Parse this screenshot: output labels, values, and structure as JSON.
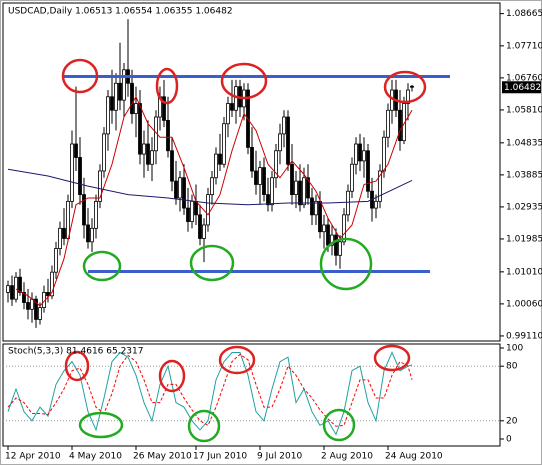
{
  "chart_data": [
    {
      "type": "candlestick",
      "title": "USDCAD,Daily  1.06513 1.06554 1.06355 1.06482",
      "categories": [
        "12 Apr 2010",
        null,
        null,
        null,
        null,
        null,
        null,
        null,
        null,
        null,
        null,
        null,
        null,
        null,
        null,
        null,
        "4 May 2010",
        null,
        null,
        null,
        null,
        null,
        null,
        null,
        null,
        null,
        null,
        null,
        null,
        null,
        null,
        null,
        "26 May 2010",
        null,
        null,
        null,
        null,
        null,
        null,
        null,
        null,
        null,
        null,
        null,
        null,
        null,
        null,
        "17 Jun 2010",
        null,
        null,
        null,
        null,
        null,
        null,
        null,
        null,
        null,
        null,
        null,
        null,
        null,
        null,
        null,
        "9 Jul 2010",
        null,
        null,
        null,
        null,
        null,
        null,
        null,
        null,
        null,
        null,
        null,
        null,
        null,
        null,
        null,
        "2 Aug 2010",
        null,
        null,
        null,
        null,
        null,
        null,
        null,
        null,
        null,
        null,
        null,
        null,
        null,
        null,
        null,
        "24 Aug 2010",
        null,
        null,
        null,
        null,
        null,
        null
      ],
      "candles": [
        [
          1.004,
          1.0075,
          1.001,
          1.006
        ],
        [
          1.006,
          1.009,
          1.0,
          1.002
        ],
        [
          1.002,
          1.01,
          1.001,
          1.0085
        ],
        [
          1.0085,
          1.011,
          1.003,
          1.004
        ],
        [
          1.004,
          1.007,
          0.999,
          1.001
        ],
        [
          1.001,
          1.005,
          0.996,
          0.999
        ],
        [
          0.999,
          1.004,
          0.995,
          1.002
        ],
        [
          1.002,
          1.003,
          0.9935,
          0.996
        ],
        [
          0.996,
          1.001,
          0.9945,
          0.9995
        ],
        [
          0.9995,
          1.006,
          0.998,
          1.004
        ],
        [
          1.004,
          1.008,
          1.001,
          1.003
        ],
        [
          1.003,
          1.012,
          1.002,
          1.01
        ],
        [
          1.01,
          1.019,
          1.008,
          1.017
        ],
        [
          1.017,
          1.025,
          1.015,
          1.023
        ],
        [
          1.023,
          1.029,
          1.018,
          1.02
        ],
        [
          1.02,
          1.033,
          1.019,
          1.031
        ],
        [
          1.031,
          1.052,
          1.029,
          1.048
        ],
        [
          1.048,
          1.065,
          1.04,
          1.044
        ],
        [
          1.044,
          1.05,
          1.03,
          1.033
        ],
        [
          1.033,
          1.038,
          1.02,
          1.024
        ],
        [
          1.024,
          1.029,
          1.017,
          1.019
        ],
        [
          1.019,
          1.026,
          1.016,
          1.023
        ],
        [
          1.023,
          1.033,
          1.02,
          1.031
        ],
        [
          1.031,
          1.042,
          1.029,
          1.04
        ],
        [
          1.04,
          1.053,
          1.038,
          1.051
        ],
        [
          1.051,
          1.064,
          1.046,
          1.062
        ],
        [
          1.062,
          1.07,
          1.054,
          1.058
        ],
        [
          1.058,
          1.069,
          1.052,
          1.066
        ],
        [
          1.066,
          1.078,
          1.058,
          1.061
        ],
        [
          1.061,
          1.072,
          1.056,
          1.07
        ],
        [
          1.07,
          1.085,
          1.062,
          1.066
        ],
        [
          1.066,
          1.07,
          1.054,
          1.057
        ],
        [
          1.057,
          1.065,
          1.05,
          1.06
        ],
        [
          1.06,
          1.064,
          1.042,
          1.045
        ],
        [
          1.045,
          1.052,
          1.038,
          1.048
        ],
        [
          1.048,
          1.055,
          1.04,
          1.042
        ],
        [
          1.042,
          1.05,
          1.037,
          1.046
        ],
        [
          1.046,
          1.058,
          1.042,
          1.056
        ],
        [
          1.056,
          1.065,
          1.052,
          1.062
        ],
        [
          1.062,
          1.067,
          1.053,
          1.055
        ],
        [
          1.055,
          1.062,
          1.044,
          1.046
        ],
        [
          1.046,
          1.05,
          1.034,
          1.037
        ],
        [
          1.037,
          1.043,
          1.03,
          1.032
        ],
        [
          1.032,
          1.04,
          1.028,
          1.038
        ],
        [
          1.038,
          1.042,
          1.027,
          1.029
        ],
        [
          1.029,
          1.035,
          1.022,
          1.025
        ],
        [
          1.025,
          1.033,
          1.023,
          1.031
        ],
        [
          1.031,
          1.036,
          1.024,
          1.027
        ],
        [
          1.027,
          1.03,
          1.018,
          1.02
        ],
        [
          1.02,
          1.026,
          1.013,
          1.024
        ],
        [
          1.024,
          1.035,
          1.022,
          1.033
        ],
        [
          1.033,
          1.04,
          1.03,
          1.038
        ],
        [
          1.038,
          1.047,
          1.036,
          1.045
        ],
        [
          1.045,
          1.051,
          1.04,
          1.042
        ],
        [
          1.042,
          1.056,
          1.041,
          1.054
        ],
        [
          1.054,
          1.062,
          1.05,
          1.06
        ],
        [
          1.06,
          1.067,
          1.056,
          1.058
        ],
        [
          1.058,
          1.067,
          1.054,
          1.065
        ],
        [
          1.065,
          1.067,
          1.056,
          1.059
        ],
        [
          1.059,
          1.066,
          1.055,
          1.064
        ],
        [
          1.064,
          1.066,
          1.045,
          1.047
        ],
        [
          1.047,
          1.053,
          1.038,
          1.04
        ],
        [
          1.04,
          1.046,
          1.033,
          1.036
        ],
        [
          1.036,
          1.043,
          1.03,
          1.041
        ],
        [
          1.041,
          1.044,
          1.031,
          1.033
        ],
        [
          1.033,
          1.038,
          1.028,
          1.03
        ],
        [
          1.03,
          1.04,
          1.028,
          1.038
        ],
        [
          1.038,
          1.048,
          1.035,
          1.046
        ],
        [
          1.046,
          1.054,
          1.042,
          1.051
        ],
        [
          1.051,
          1.058,
          1.047,
          1.056
        ],
        [
          1.056,
          1.058,
          1.04,
          1.042
        ],
        [
          1.042,
          1.048,
          1.03,
          1.033
        ],
        [
          1.033,
          1.04,
          1.029,
          1.037
        ],
        [
          1.037,
          1.042,
          1.028,
          1.03
        ],
        [
          1.03,
          1.041,
          1.029,
          1.038
        ],
        [
          1.038,
          1.042,
          1.03,
          1.032
        ],
        [
          1.032,
          1.035,
          1.024,
          1.027
        ],
        [
          1.027,
          1.033,
          1.024,
          1.031
        ],
        [
          1.031,
          1.034,
          1.02,
          1.022
        ],
        [
          1.022,
          1.027,
          1.017,
          1.024
        ],
        [
          1.024,
          1.026,
          1.016,
          1.018
        ],
        [
          1.018,
          1.024,
          1.015,
          1.021
        ],
        [
          1.021,
          1.023,
          1.012,
          1.015
        ],
        [
          1.015,
          1.021,
          1.011,
          1.019
        ],
        [
          1.019,
          1.029,
          1.018,
          1.027
        ],
        [
          1.027,
          1.036,
          1.025,
          1.034
        ],
        [
          1.034,
          1.044,
          1.032,
          1.042
        ],
        [
          1.042,
          1.05,
          1.039,
          1.048
        ],
        [
          1.048,
          1.051,
          1.04,
          1.043
        ],
        [
          1.043,
          1.05,
          1.038,
          1.046
        ],
        [
          1.046,
          1.048,
          1.032,
          1.034
        ],
        [
          1.034,
          1.038,
          1.025,
          1.029
        ],
        [
          1.029,
          1.033,
          1.026,
          1.031
        ],
        [
          1.031,
          1.042,
          1.029,
          1.04
        ],
        [
          1.04,
          1.052,
          1.038,
          1.05
        ],
        [
          1.05,
          1.06,
          1.047,
          1.058
        ],
        [
          1.058,
          1.067,
          1.054,
          1.064
        ],
        [
          1.064,
          1.067,
          1.056,
          1.058
        ],
        [
          1.058,
          1.064,
          1.046,
          1.049
        ],
        [
          1.049,
          1.062,
          1.048,
          1.06
        ],
        [
          1.06,
          1.066,
          1.055,
          1.064
        ],
        [
          1.06513,
          1.06554,
          1.06355,
          1.06482
        ]
      ],
      "lines": [
        {
          "color": "#cc0000",
          "x": [
            2,
            5,
            8,
            11,
            14,
            17,
            20,
            23,
            26,
            29,
            32,
            35,
            38,
            41,
            44,
            47,
            50,
            53,
            56,
            59,
            62,
            65,
            68,
            71,
            74,
            77,
            80,
            83,
            86,
            89,
            92,
            95,
            98,
            101
          ],
          "values": [
            1.005,
            1.003,
            1.0,
            1.004,
            1.014,
            1.03,
            1.032,
            1.032,
            1.042,
            1.056,
            1.062,
            1.054,
            1.05,
            1.05,
            1.041,
            1.031,
            1.027,
            1.033,
            1.046,
            1.057,
            1.052,
            1.042,
            1.038,
            1.043,
            1.039,
            1.034,
            1.026,
            1.02,
            1.024,
            1.036,
            1.037,
            1.042,
            1.052,
            1.058
          ]
        },
        {
          "color": "#1a1a6e",
          "x": [
            0,
            10,
            20,
            30,
            40,
            50,
            60,
            70,
            80,
            90,
            101
          ],
          "values": [
            1.0405,
            1.0385,
            1.0355,
            1.033,
            1.032,
            1.0305,
            1.03,
            1.0305,
            1.0305,
            1.031,
            1.0372
          ]
        }
      ],
      "levels": [
        {
          "value": 1.068,
          "x": [
            13.5,
            110.5
          ],
          "color": "#3a5fcd"
        },
        {
          "value": 1.0102,
          "x": [
            20,
            105.5
          ],
          "color": "#3a5fcd"
        }
      ],
      "ylim": [
        0.9896,
        1.0898
      ],
      "yticks": [
        1.08665,
        {
          "value": 1.0771,
          "label": "1.07710"
        },
        {
          "value": 1.0676,
          "label": "1.06760"
        },
        {
          "value": 1.0581,
          "label": "1.05810"
        },
        1.04835,
        1.03885,
        1.02935,
        1.01985,
        {
          "value": 1.0101,
          "label": "1.01010"
        },
        {
          "value": 1.0006,
          "label": "1.00060"
        },
        {
          "value": 0.9911,
          "label": "0.99110"
        }
      ]
    },
    {
      "type": "line",
      "title": "Stoch(5,3,3) 81.4616 65.2317",
      "series": [
        {
          "color": "#20a0a0",
          "x": [
            0,
            2,
            4,
            6,
            8,
            10,
            12,
            14,
            16,
            18,
            20,
            22,
            24,
            26,
            28,
            30,
            32,
            34,
            36,
            38,
            40,
            42,
            44,
            46,
            48,
            50,
            52,
            54,
            56,
            58,
            60,
            62,
            64,
            66,
            68,
            70,
            72,
            74,
            76,
            78,
            80,
            82,
            84,
            86,
            88,
            90,
            92,
            94,
            96,
            98,
            100,
            101
          ],
          "values": [
            30,
            55,
            30,
            20,
            35,
            25,
            60,
            75,
            85,
            70,
            30,
            10,
            45,
            85,
            95,
            90,
            70,
            40,
            20,
            60,
            80,
            40,
            35,
            20,
            10,
            20,
            65,
            85,
            95,
            95,
            70,
            30,
            20,
            55,
            85,
            90,
            40,
            55,
            30,
            15,
            20,
            5,
            30,
            75,
            80,
            40,
            20,
            75,
            95,
            75,
            80,
            81.4616
          ]
        },
        {
          "color": "#ff0000",
          "dashed": true,
          "x": [
            0,
            2,
            4,
            6,
            8,
            10,
            12,
            14,
            16,
            18,
            20,
            22,
            24,
            26,
            28,
            30,
            32,
            34,
            36,
            38,
            40,
            42,
            44,
            46,
            48,
            50,
            52,
            54,
            56,
            58,
            60,
            62,
            64,
            66,
            68,
            70,
            72,
            74,
            76,
            78,
            80,
            82,
            84,
            86,
            88,
            90,
            92,
            94,
            96,
            98,
            100,
            101
          ],
          "values": [
            35,
            45,
            40,
            28,
            28,
            27,
            40,
            55,
            75,
            78,
            60,
            35,
            28,
            50,
            80,
            92,
            85,
            65,
            40,
            40,
            60,
            60,
            45,
            32,
            20,
            15,
            35,
            60,
            85,
            93,
            87,
            60,
            35,
            35,
            55,
            80,
            70,
            55,
            45,
            32,
            22,
            14,
            15,
            40,
            65,
            65,
            45,
            45,
            70,
            85,
            80,
            65.2317
          ]
        }
      ],
      "levels": [
        80,
        20
      ],
      "ylim": [
        -7.7,
        104.4
      ],
      "yticks": [
        100,
        80,
        20,
        0
      ]
    }
  ]
}
